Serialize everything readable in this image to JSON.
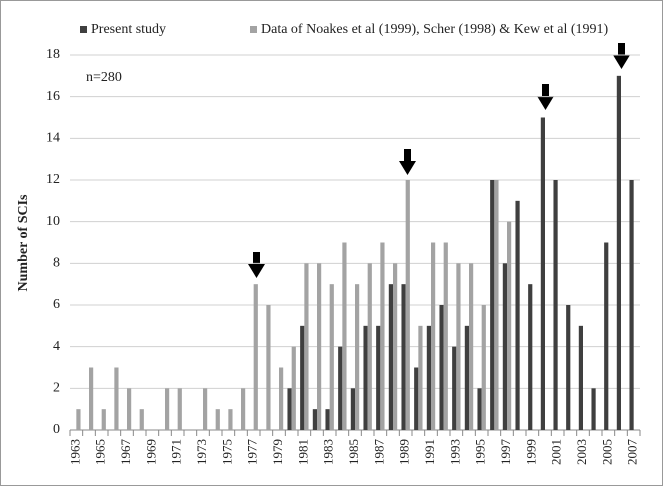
{
  "chart_data": {
    "type": "bar",
    "y_label": "Number of SCIs",
    "annotation": "n=280",
    "categories": [
      "1963",
      null,
      "1965",
      null,
      "1967",
      null,
      "1969",
      null,
      "1971",
      null,
      "1973",
      null,
      "1975",
      null,
      "1977",
      null,
      "1979",
      null,
      "1981",
      null,
      "1983",
      null,
      "1985",
      null,
      "1987",
      null,
      "1989",
      null,
      "1991",
      null,
      "1993",
      null,
      "1995",
      null,
      "1997",
      null,
      "1999",
      null,
      "2001",
      null,
      "2003",
      null,
      "2005",
      null,
      "2007"
    ],
    "series": [
      {
        "name": "Present study",
        "color": "#3f3f3f",
        "values": [
          0,
          0,
          0,
          0,
          0,
          0,
          0,
          0,
          0,
          0,
          0,
          0,
          0,
          0,
          0,
          0,
          0,
          2,
          5,
          1,
          1,
          4,
          2,
          5,
          5,
          7,
          7,
          3,
          5,
          6,
          4,
          5,
          2,
          12,
          8,
          11,
          7,
          15,
          12,
          6,
          5,
          2,
          9,
          17,
          12
        ]
      },
      {
        "name": "Data of Noakes et al (1999), Scher (1998) & Kew et al (1991)",
        "color": "#a3a3a3",
        "values": [
          1,
          3,
          1,
          3,
          2,
          1,
          0,
          2,
          2,
          0,
          2,
          1,
          1,
          2,
          7,
          6,
          3,
          4,
          8,
          8,
          7,
          9,
          7,
          8,
          9,
          8,
          12,
          5,
          9,
          9,
          8,
          8,
          6,
          12,
          10,
          0,
          0,
          0,
          0,
          0,
          0,
          0,
          0,
          0,
          0
        ]
      }
    ],
    "ylim": [
      0,
      18
    ],
    "yticks": [
      0,
      2,
      4,
      6,
      8,
      10,
      12,
      14,
      16,
      18
    ],
    "grid": true,
    "legend": "top"
  }
}
